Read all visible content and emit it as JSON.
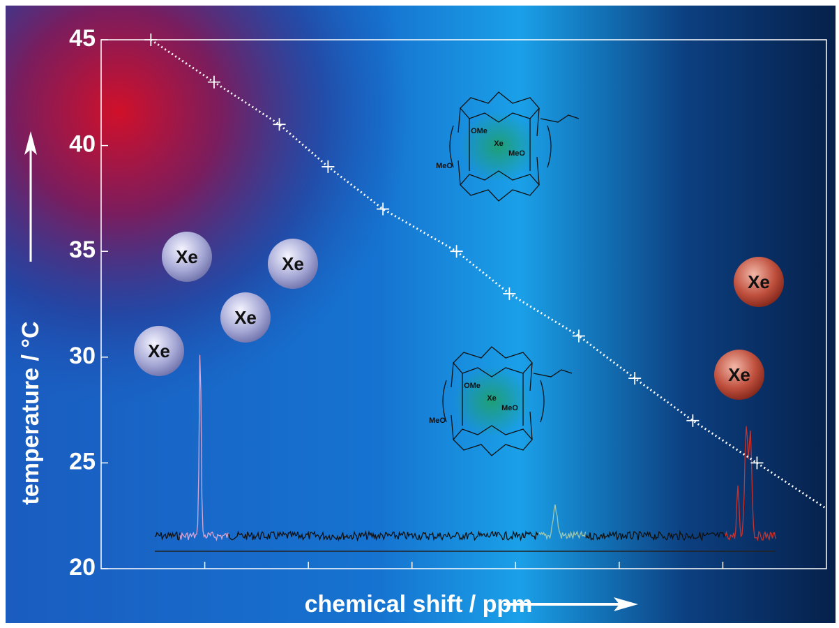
{
  "chart_data": {
    "type": "scatter",
    "x_label": "chemical shift / ppm",
    "y_label": "temperature / °C",
    "x": [
      0.48,
      1.09,
      1.72,
      2.19,
      2.72,
      3.43,
      3.94,
      4.61,
      5.15,
      5.71,
      6.33
    ],
    "series": [
      {
        "color": "#ffffff",
        "values": [
          45,
          43,
          41,
          39,
          37,
          35,
          33,
          31,
          29,
          27,
          25
        ]
      }
    ],
    "xlim": [
      0,
      7
    ],
    "xticks": [
      1,
      2,
      3,
      4,
      5,
      6
    ],
    "ylim": [
      20,
      45
    ],
    "yticks": [
      20,
      25,
      30,
      35,
      40,
      45
    ],
    "annotations": [
      "Xe",
      "Xe",
      "Xe",
      "Xe",
      "Xe",
      "Xe"
    ],
    "molecules": [
      {
        "labels": [
          "OMe",
          "Xe",
          "MeO",
          "MeO"
        ]
      },
      {
        "labels": [
          "OMe",
          "Xe",
          "MeO",
          "MeO"
        ]
      }
    ]
  }
}
